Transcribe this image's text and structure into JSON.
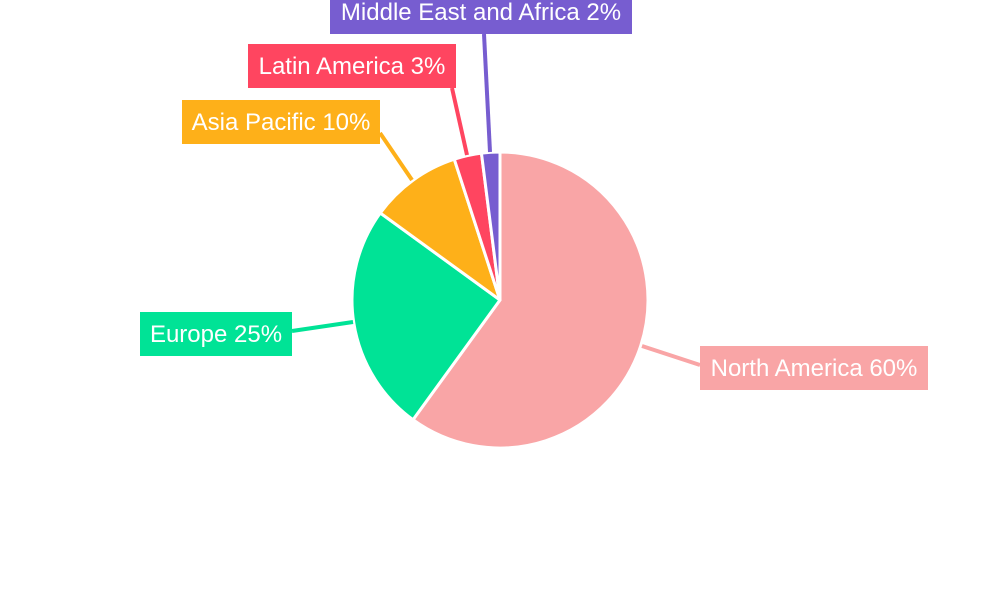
{
  "chart_data": {
    "type": "pie",
    "categories": [
      "North America",
      "Europe",
      "Asia Pacific",
      "Latin America",
      "Middle East and Africa"
    ],
    "values": [
      60,
      25,
      10,
      3,
      2
    ],
    "unit": "%",
    "data_labels": [
      "North America 60%",
      "Europe 25%",
      "Asia Pacific 10%",
      "Latin America 3%",
      "Middle East and Africa 2%"
    ],
    "colors": [
      "#f9a5a6",
      "#00e396",
      "#feb019",
      "#ff4560",
      "#775dd0"
    ],
    "start_angle": "12 o'clock",
    "direction": "clockwise",
    "legend": "none"
  }
}
